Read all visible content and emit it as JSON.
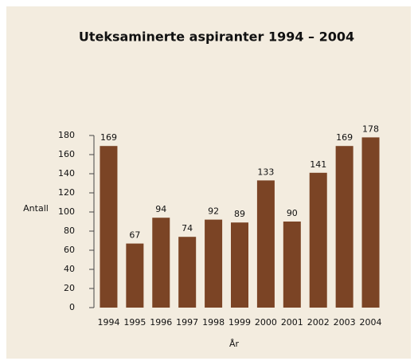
{
  "chart_data": {
    "type": "bar",
    "title": "Uteksaminerte aspiranter 1994 – 2004",
    "x_label": "År",
    "y_label": "Antall",
    "categories": [
      "1994",
      "1995",
      "1996",
      "1997",
      "1998",
      "1999",
      "2000",
      "2001",
      "2002",
      "2003",
      "2004"
    ],
    "values": [
      169,
      67,
      94,
      74,
      92,
      89,
      133,
      90,
      141,
      169,
      178
    ],
    "color": "#7b4425",
    "ylim": [
      0,
      180
    ],
    "yticks": [
      0,
      20,
      40,
      60,
      80,
      100,
      120,
      140,
      160,
      180
    ],
    "grid": false
  }
}
